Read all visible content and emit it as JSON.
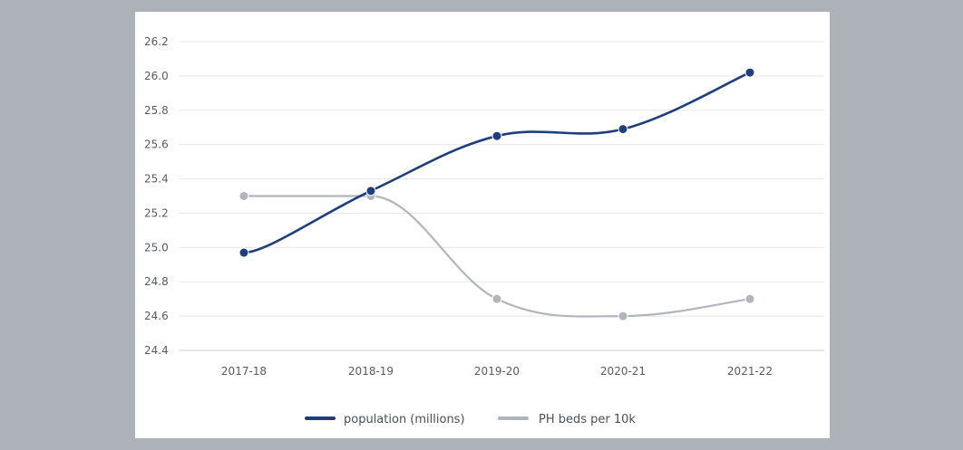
{
  "chart_data": {
    "type": "line",
    "title": "",
    "xlabel": "",
    "ylabel": "",
    "categories": [
      "2017-18",
      "2018-19",
      "2019-20",
      "2020-21",
      "2021-22"
    ],
    "ylim": [
      24.4,
      26.2
    ],
    "yticks": [
      "26.2",
      "26.0",
      "25.8",
      "25.6",
      "25.4",
      "25.2",
      "25.0",
      "24.8",
      "24.6",
      "24.4"
    ],
    "grid": true,
    "legend_position": "bottom",
    "series": [
      {
        "name": "population (millions)",
        "color": "#1e3f7e",
        "values": [
          24.97,
          25.33,
          25.65,
          25.69,
          26.02
        ]
      },
      {
        "name": "PH beds per 10k",
        "color": "#b1b5bd",
        "values": [
          25.3,
          25.3,
          24.7,
          24.6,
          24.7
        ]
      }
    ]
  }
}
